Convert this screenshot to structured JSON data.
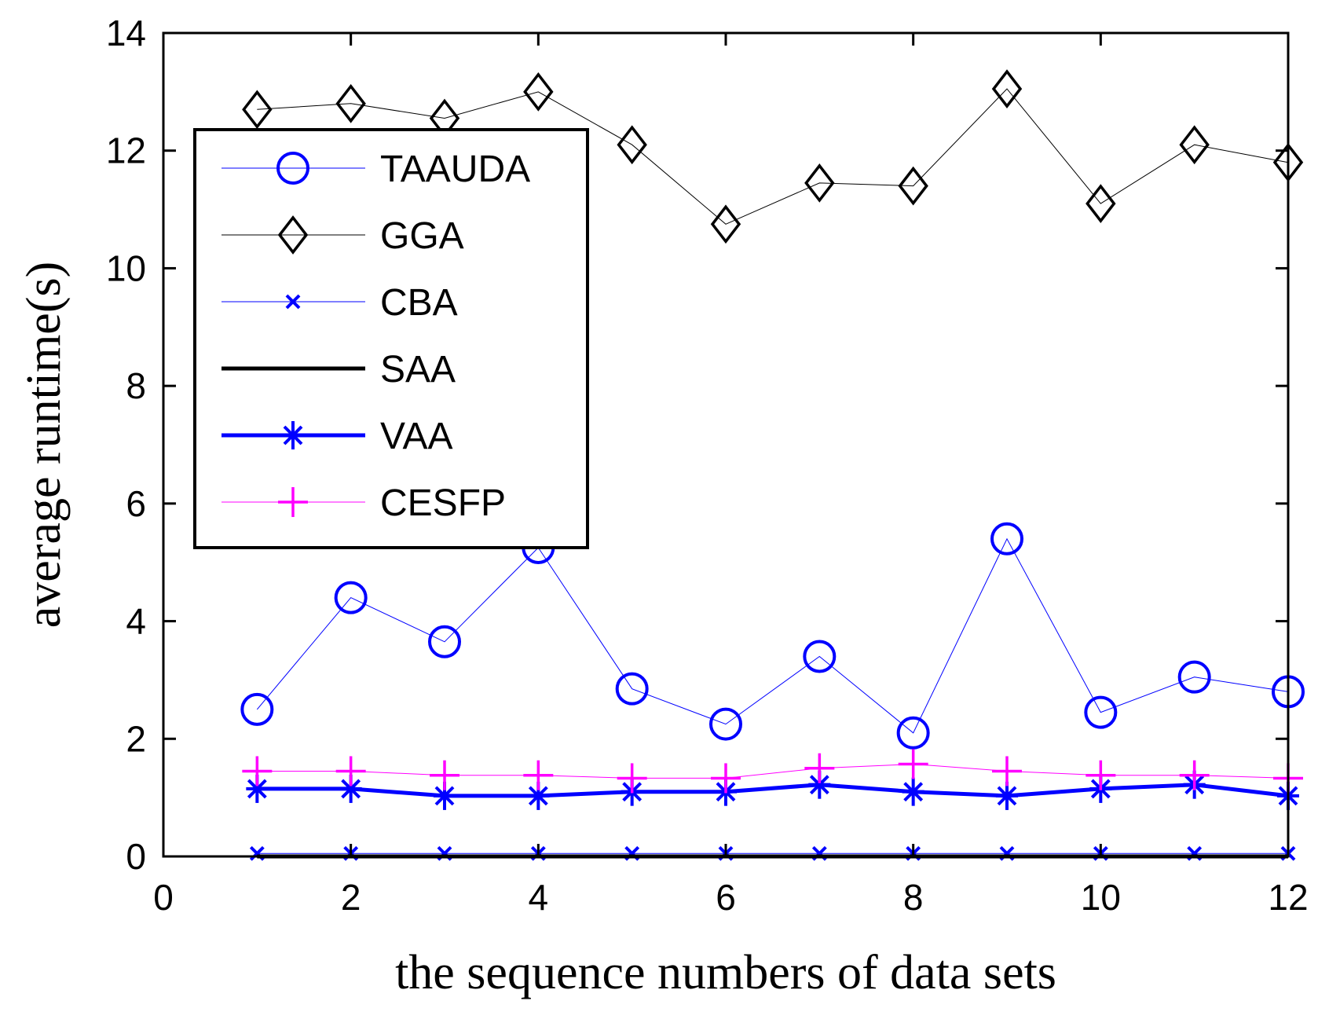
{
  "chart_data": {
    "type": "line",
    "title": "",
    "xlabel": "the sequence numbers of data sets",
    "ylabel": "average runtime(s)",
    "xlim": [
      0,
      12
    ],
    "ylim": [
      0,
      14
    ],
    "xticks": [
      0,
      2,
      4,
      6,
      8,
      10,
      12
    ],
    "yticks": [
      0,
      2,
      4,
      6,
      8,
      10,
      12,
      14
    ],
    "grid": false,
    "legend_position": "top-left",
    "x": [
      1,
      2,
      3,
      4,
      5,
      6,
      7,
      8,
      9,
      10,
      11,
      12
    ],
    "series": [
      {
        "name": "TAAUDA",
        "color": "#0000ff",
        "marker": "circle",
        "line_width": "thin",
        "values": [
          2.5,
          4.4,
          3.65,
          5.25,
          2.85,
          2.25,
          3.4,
          2.1,
          5.4,
          2.45,
          3.05,
          2.8
        ]
      },
      {
        "name": "GGA",
        "color": "#000000",
        "marker": "diamond",
        "line_width": "thin",
        "values": [
          12.7,
          12.8,
          12.55,
          13.0,
          12.1,
          10.75,
          11.45,
          11.4,
          13.05,
          11.1,
          12.1,
          11.8
        ]
      },
      {
        "name": "CBA",
        "color": "#0000ff",
        "marker": "x",
        "line_width": "thin",
        "values": [
          0.05,
          0.05,
          0.05,
          0.05,
          0.05,
          0.05,
          0.05,
          0.05,
          0.05,
          0.05,
          0.05,
          0.05
        ]
      },
      {
        "name": "SAA",
        "color": "#000000",
        "marker": "none",
        "line_width": "thick",
        "values": [
          0.0,
          0.0,
          0.0,
          0.0,
          0.0,
          0.0,
          0.0,
          0.0,
          0.0,
          0.0,
          0.0,
          0.0
        ]
      },
      {
        "name": "VAA",
        "color": "#0000ff",
        "marker": "star",
        "line_width": "thick",
        "values": [
          1.15,
          1.15,
          1.03,
          1.03,
          1.1,
          1.1,
          1.22,
          1.1,
          1.03,
          1.15,
          1.22,
          1.03
        ]
      },
      {
        "name": "CESFP",
        "color": "#ff00ff",
        "marker": "plus",
        "line_width": "thin",
        "values": [
          1.45,
          1.45,
          1.38,
          1.38,
          1.33,
          1.33,
          1.5,
          1.57,
          1.45,
          1.38,
          1.38,
          1.33
        ]
      }
    ]
  }
}
